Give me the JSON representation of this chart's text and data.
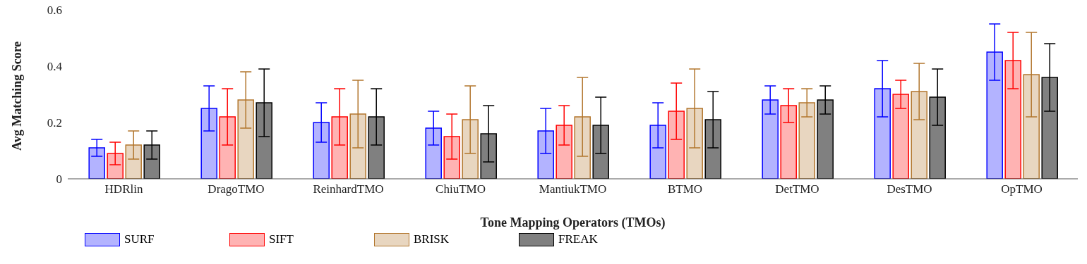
{
  "chart_data": {
    "type": "bar",
    "xlabel": "Tone Mapping Operators (TMOs)",
    "ylabel": "Avg Matching Score",
    "categories": [
      "HDRlin",
      "DragoTMO",
      "ReinhardTMO",
      "ChiuTMO",
      "MantiukTMO",
      "BTMO",
      "DetTMO",
      "DesTMO",
      "OpTMO"
    ],
    "series": [
      {
        "name": "SURF",
        "color": "#b3b3ff",
        "values": [
          0.11,
          0.25,
          0.2,
          0.18,
          0.17,
          0.19,
          0.28,
          0.32,
          0.45
        ],
        "errors": [
          0.03,
          0.08,
          0.07,
          0.06,
          0.08,
          0.08,
          0.05,
          0.1,
          0.1
        ]
      },
      {
        "name": "SIFT",
        "color": "#ffb3b3",
        "values": [
          0.09,
          0.22,
          0.22,
          0.15,
          0.19,
          0.24,
          0.26,
          0.3,
          0.42
        ],
        "errors": [
          0.04,
          0.1,
          0.1,
          0.08,
          0.07,
          0.1,
          0.06,
          0.05,
          0.1
        ]
      },
      {
        "name": "BRISK",
        "color": "#e8d6c0",
        "values": [
          0.12,
          0.28,
          0.23,
          0.21,
          0.22,
          0.25,
          0.27,
          0.31,
          0.37
        ],
        "errors": [
          0.05,
          0.1,
          0.12,
          0.12,
          0.14,
          0.14,
          0.05,
          0.1,
          0.15
        ]
      },
      {
        "name": "FREAK",
        "color": "#808080",
        "values": [
          0.12,
          0.27,
          0.22,
          0.16,
          0.19,
          0.21,
          0.28,
          0.29,
          0.36
        ],
        "errors": [
          0.05,
          0.12,
          0.1,
          0.1,
          0.1,
          0.1,
          0.05,
          0.1,
          0.12
        ]
      }
    ],
    "ylim": [
      0,
      0.6
    ],
    "yticks": [
      0,
      0.2,
      0.4,
      0.6
    ],
    "legend": "bottom"
  }
}
